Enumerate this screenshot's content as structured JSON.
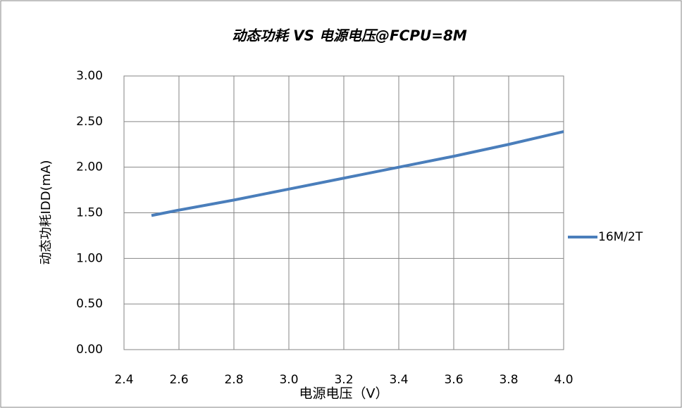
{
  "chart_data": {
    "type": "line",
    "title": "动态功耗 VS 电源电压@FCPU=8M",
    "x_label": "电源电压（V）",
    "y_label": "动态功耗IDD(mA)",
    "x": [
      2.5,
      2.6,
      2.8,
      3.0,
      3.2,
      3.4,
      3.6,
      3.8,
      4.0
    ],
    "series": [
      {
        "name": "16M/2T",
        "color": "#4a7ebb",
        "values": [
          1.47,
          1.53,
          1.64,
          1.76,
          1.88,
          2.0,
          2.12,
          2.25,
          2.39
        ]
      }
    ],
    "xlim": [
      2.4,
      4.0
    ],
    "xticks": [
      2.4,
      2.6,
      2.8,
      {
        "value": 3,
        "label": "3.0"
      },
      3.2,
      3.4,
      3.6,
      3.8,
      {
        "value": 4,
        "label": "4.0"
      }
    ],
    "ylim": [
      0,
      3
    ],
    "yticks": [
      {
        "value": 0,
        "label": "0.00"
      },
      {
        "value": 0.5,
        "label": "0.50"
      },
      {
        "value": 1,
        "label": "1.00"
      },
      {
        "value": 1.5,
        "label": "1.50"
      },
      {
        "value": 2,
        "label": "2.00"
      },
      {
        "value": 2.5,
        "label": "2.50"
      },
      {
        "value": 3,
        "label": "3.00"
      }
    ],
    "grid": true,
    "legend": "right"
  }
}
